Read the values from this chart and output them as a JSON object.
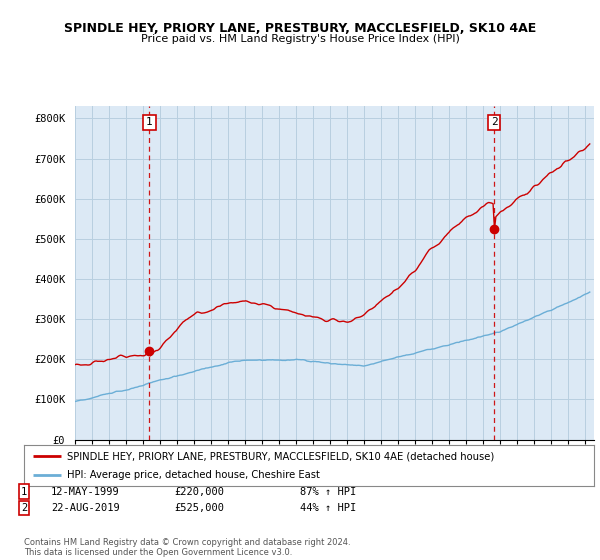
{
  "title": "SPINDLE HEY, PRIORY LANE, PRESTBURY, MACCLESFIELD, SK10 4AE",
  "subtitle": "Price paid vs. HM Land Registry's House Price Index (HPI)",
  "ylabel_ticks": [
    "£0",
    "£100K",
    "£200K",
    "£300K",
    "£400K",
    "£500K",
    "£600K",
    "£700K",
    "£800K"
  ],
  "ytick_vals": [
    0,
    100000,
    200000,
    300000,
    400000,
    500000,
    600000,
    700000,
    800000
  ],
  "ylim": [
    0,
    830000
  ],
  "x_start_year": 1995,
  "x_end_year": 2025,
  "hpi_color": "#6baed6",
  "property_color": "#cc0000",
  "chart_bg": "#dce9f5",
  "marker1_date": 1999.37,
  "marker1_val": 220000,
  "marker1_label": "1",
  "marker2_date": 2019.64,
  "marker2_val": 525000,
  "marker2_label": "2",
  "marker1_text": "12-MAY-1999",
  "marker1_price": "£220,000",
  "marker1_hpi": "87% ↑ HPI",
  "marker2_text": "22-AUG-2019",
  "marker2_price": "£525,000",
  "marker2_hpi": "44% ↑ HPI",
  "legend_property": "SPINDLE HEY, PRIORY LANE, PRESTBURY, MACCLESFIELD, SK10 4AE (detached house)",
  "legend_hpi": "HPI: Average price, detached house, Cheshire East",
  "footnote": "Contains HM Land Registry data © Crown copyright and database right 2024.\nThis data is licensed under the Open Government Licence v3.0.",
  "bg_color": "#ffffff",
  "grid_color": "#b8cfe0"
}
